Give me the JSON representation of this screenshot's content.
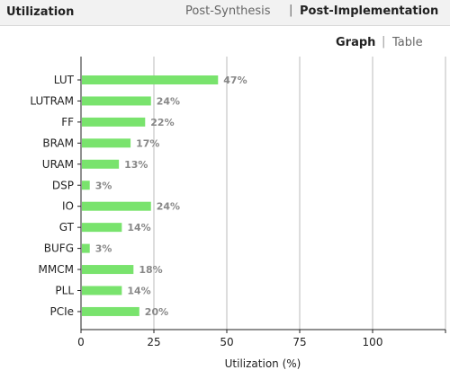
{
  "header": {
    "title": "Utilization",
    "tabs": [
      {
        "label": "Post-Synthesis",
        "active": false
      },
      {
        "label": "Post-Implementation",
        "active": true
      }
    ],
    "separator": "|"
  },
  "view_toggle": {
    "graph_label": "Graph",
    "table_label": "Table",
    "separator": "|",
    "active": "Graph"
  },
  "colors": {
    "bar": "#79e36d",
    "grid": "#bbbbbb",
    "percent_label": "#888888"
  },
  "chart_data": {
    "type": "bar",
    "orientation": "horizontal",
    "categories": [
      "LUT",
      "LUTRAM",
      "FF",
      "BRAM",
      "URAM",
      "DSP",
      "IO",
      "GT",
      "BUFG",
      "MMCM",
      "PLL",
      "PCIe"
    ],
    "values": [
      47,
      24,
      22,
      17,
      13,
      3,
      24,
      14,
      3,
      18,
      14,
      20
    ],
    "value_labels": [
      "47%",
      "24%",
      "22%",
      "17%",
      "13%",
      "3%",
      "24%",
      "14%",
      "3%",
      "18%",
      "14%",
      "20%"
    ],
    "xticks": [
      0,
      25,
      50,
      75,
      100
    ],
    "xlim": [
      0,
      125
    ],
    "xlabel": "Utilization (%)",
    "grid": true
  }
}
